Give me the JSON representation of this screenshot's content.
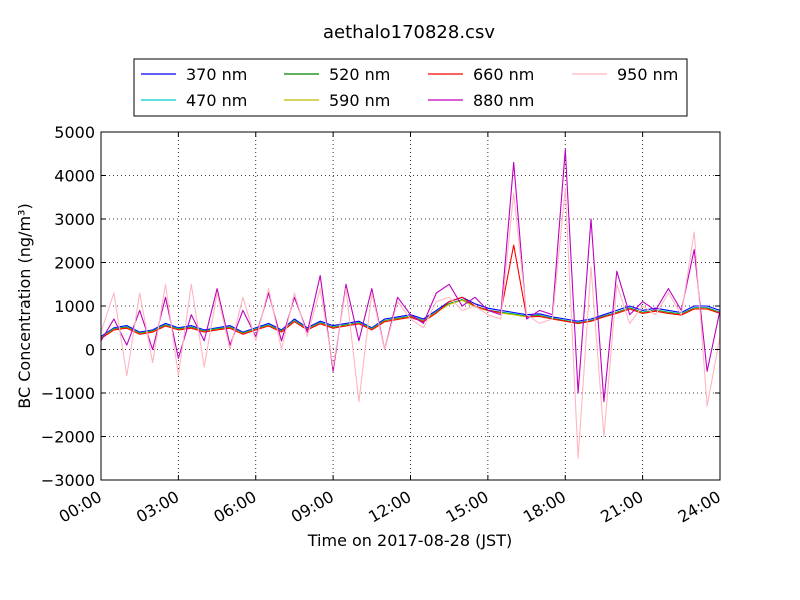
{
  "chart_data": {
    "type": "line",
    "title": "aethalo170828.csv",
    "xlabel": "Time on 2017-08-28 (JST)",
    "ylabel": "BC Concentration (ng/m³)",
    "xlim": [
      "00:00",
      "24:00"
    ],
    "ylim": [
      -3000,
      5000
    ],
    "grid": true,
    "legend_position": "top",
    "x_ticks": [
      "00:00",
      "03:00",
      "06:00",
      "09:00",
      "12:00",
      "15:00",
      "18:00",
      "21:00",
      "24:00"
    ],
    "y_ticks": [
      -3000,
      -2000,
      -1000,
      0,
      1000,
      2000,
      3000,
      4000,
      5000
    ],
    "x_hours": [
      0,
      0.5,
      1,
      1.5,
      2,
      2.5,
      3,
      3.5,
      4,
      4.5,
      5,
      5.5,
      6,
      6.5,
      7,
      7.5,
      8,
      8.5,
      9,
      9.5,
      10,
      10.5,
      11,
      11.5,
      12,
      12.5,
      13,
      13.5,
      14,
      14.5,
      15,
      15.5,
      16,
      16.5,
      17,
      17.5,
      18,
      18.5,
      19,
      19.5,
      20,
      20.5,
      21,
      21.5,
      22,
      22.5,
      23,
      23.5,
      24
    ],
    "series": [
      {
        "name": "370 nm",
        "color": "#0000ff",
        "values": [
          300,
          500,
          550,
          400,
          450,
          600,
          500,
          550,
          450,
          500,
          550,
          400,
          500,
          600,
          450,
          700,
          500,
          650,
          550,
          600,
          650,
          500,
          700,
          750,
          800,
          700,
          900,
          1100,
          1200,
          1050,
          950,
          900,
          850,
          800,
          820,
          750,
          700,
          650,
          700,
          800,
          900,
          1000,
          900,
          950,
          900,
          850,
          1000,
          1000,
          900
        ]
      },
      {
        "name": "470 nm",
        "color": "#00cccc",
        "values": [
          280,
          480,
          520,
          380,
          430,
          570,
          480,
          520,
          430,
          480,
          520,
          380,
          480,
          570,
          430,
          670,
          480,
          620,
          520,
          570,
          620,
          480,
          670,
          720,
          770,
          670,
          870,
          1060,
          1150,
          1000,
          910,
          860,
          820,
          770,
          790,
          720,
          670,
          620,
          670,
          770,
          860,
          960,
          860,
          910,
          860,
          820,
          960,
          960,
          860
        ]
      },
      {
        "name": "520 nm",
        "color": "#008000",
        "values": [
          270,
          470,
          510,
          370,
          420,
          560,
          470,
          510,
          420,
          470,
          510,
          370,
          470,
          560,
          420,
          660,
          470,
          610,
          510,
          560,
          610,
          470,
          660,
          710,
          760,
          660,
          860,
          1050,
          1140,
          990,
          900,
          850,
          810,
          760,
          780,
          710,
          660,
          610,
          660,
          760,
          850,
          950,
          850,
          900,
          850,
          810,
          950,
          950,
          850
        ]
      },
      {
        "name": "590 nm",
        "color": "#bfbf00",
        "values": [
          260,
          460,
          500,
          360,
          410,
          550,
          460,
          500,
          410,
          460,
          500,
          360,
          460,
          550,
          410,
          650,
          460,
          600,
          500,
          550,
          600,
          460,
          650,
          700,
          750,
          650,
          850,
          1040,
          1130,
          980,
          890,
          840,
          800,
          750,
          770,
          700,
          650,
          600,
          650,
          750,
          840,
          940,
          840,
          890,
          840,
          800,
          940,
          940,
          840
        ]
      },
      {
        "name": "660 nm",
        "color": "#ff0000",
        "values": [
          250,
          450,
          490,
          350,
          400,
          540,
          450,
          490,
          400,
          450,
          490,
          350,
          450,
          540,
          400,
          640,
          450,
          590,
          490,
          540,
          590,
          450,
          640,
          690,
          740,
          640,
          840,
          1100,
          1200,
          1000,
          900,
          850,
          2400,
          750,
          760,
          700,
          650,
          600,
          650,
          750,
          830,
          930,
          830,
          880,
          830,
          790,
          930,
          930,
          830
        ]
      },
      {
        "name": "880 nm",
        "color": "#bf00bf",
        "values": [
          200,
          700,
          100,
          900,
          0,
          1200,
          -200,
          800,
          200,
          1400,
          100,
          900,
          300,
          1300,
          200,
          1200,
          400,
          1700,
          -500,
          1500,
          200,
          1400,
          0,
          1200,
          800,
          600,
          1300,
          1500,
          1000,
          1200,
          900,
          800,
          4300,
          700,
          900,
          800,
          4600,
          -1000,
          3000,
          -1200,
          1800,
          800,
          1100,
          900,
          1400,
          900,
          2300,
          -500,
          900
        ]
      },
      {
        "name": "950 nm",
        "color": "#ffb6c1",
        "values": [
          400,
          1300,
          -600,
          1300,
          -300,
          1500,
          -600,
          1500,
          -400,
          1300,
          0,
          1200,
          200,
          1400,
          0,
          1300,
          300,
          1400,
          -400,
          1400,
          -1200,
          1300,
          0,
          1100,
          700,
          500,
          1100,
          1200,
          900,
          1000,
          800,
          700,
          3600,
          800,
          600,
          700,
          3700,
          -2500,
          1900,
          -2000,
          1500,
          600,
          1000,
          800,
          1300,
          800,
          2700,
          -1300,
          300
        ]
      }
    ]
  }
}
